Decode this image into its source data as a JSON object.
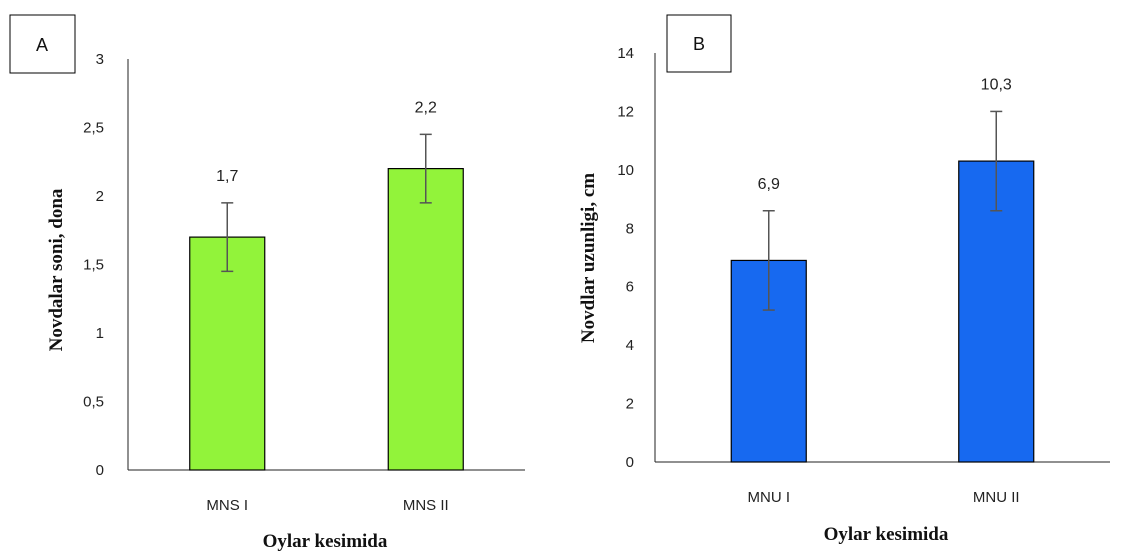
{
  "chart_data": [
    {
      "type": "bar",
      "panel_label": "A",
      "categories": [
        "MNS I",
        "MNS II"
      ],
      "values": [
        1.7,
        2.2
      ],
      "value_labels": [
        "1,7",
        "2,2"
      ],
      "error": [
        0.25,
        0.25
      ],
      "xlabel": "Oylar kesimida",
      "ylabel": "Novdalar soni, dona",
      "ylim": [
        0,
        3
      ],
      "yticks": [
        0,
        0.5,
        1,
        1.5,
        2,
        2.5,
        3
      ],
      "ytick_labels": [
        "0",
        "0,5",
        "1",
        "1,5",
        "2",
        "2,5",
        "3"
      ],
      "bar_color": "#92f33a",
      "grid": false
    },
    {
      "type": "bar",
      "panel_label": "B",
      "categories": [
        "MNU I",
        "MNU II"
      ],
      "values": [
        6.9,
        10.3
      ],
      "value_labels": [
        "6,9",
        "10,3"
      ],
      "error": [
        1.7,
        1.7
      ],
      "xlabel": "Oylar kesimida",
      "ylabel": "Novdlar uzunligi, cm",
      "ylim": [
        0,
        14
      ],
      "yticks": [
        0,
        2,
        4,
        6,
        8,
        10,
        12,
        14
      ],
      "ytick_labels": [
        "0",
        "2",
        "4",
        "6",
        "8",
        "10",
        "12",
        "14"
      ],
      "bar_color": "#1769f0",
      "grid": false
    }
  ]
}
